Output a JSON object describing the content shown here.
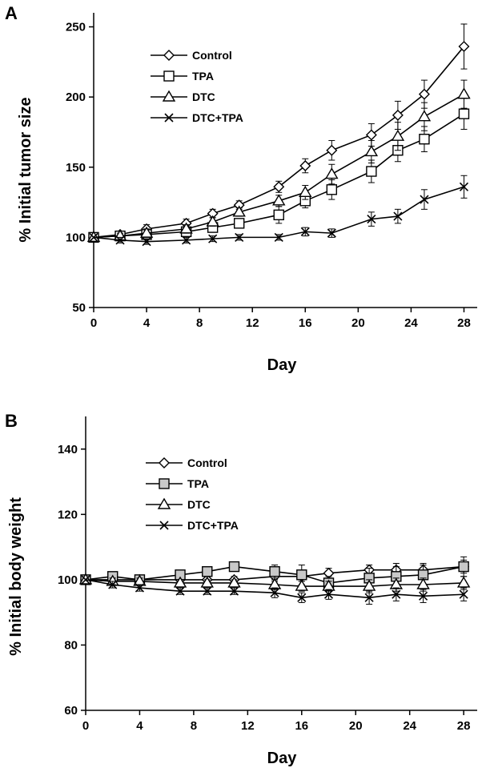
{
  "chart_data": [
    {
      "panel": "A",
      "type": "line",
      "xlabel": "Day",
      "ylabel": "% Initial tumor size",
      "xlim": [
        0,
        29
      ],
      "ylim": [
        50,
        260
      ],
      "xticks": [
        0,
        4,
        8,
        12,
        16,
        20,
        24,
        28
      ],
      "yticks": [
        50,
        100,
        150,
        200,
        250
      ],
      "legend_position": "top-left",
      "series": [
        {
          "name": "Control",
          "marker": "diamond",
          "fill": "#ffffff",
          "x": [
            0,
            2,
            4,
            7,
            9,
            11,
            14,
            16,
            18,
            21,
            23,
            25,
            28
          ],
          "y": [
            100,
            102,
            106,
            110,
            117,
            123,
            136,
            151,
            162,
            173,
            187,
            202,
            236
          ],
          "err": [
            0,
            2,
            3,
            3,
            3,
            3,
            4,
            5,
            7,
            8,
            10,
            10,
            16
          ]
        },
        {
          "name": "TPA",
          "marker": "square",
          "fill": "#ffffff",
          "x": [
            0,
            2,
            4,
            7,
            9,
            11,
            14,
            16,
            18,
            21,
            23,
            25,
            28
          ],
          "y": [
            100,
            101,
            102,
            104,
            107,
            110,
            116,
            126,
            134,
            147,
            162,
            170,
            188
          ],
          "err": [
            0,
            2,
            2,
            3,
            3,
            3,
            6,
            5,
            7,
            8,
            8,
            9,
            11
          ]
        },
        {
          "name": "DTC",
          "marker": "triangle",
          "fill": "#ffffff",
          "x": [
            0,
            2,
            4,
            7,
            9,
            11,
            14,
            16,
            18,
            21,
            23,
            25,
            28
          ],
          "y": [
            100,
            101,
            103,
            106,
            111,
            118,
            126,
            132,
            145,
            161,
            172,
            186,
            202
          ],
          "err": [
            0,
            2,
            3,
            3,
            3,
            3,
            4,
            5,
            7,
            8,
            10,
            10,
            10
          ]
        },
        {
          "name": "DTC+TPA",
          "marker": "x",
          "fill": "#ffffff",
          "x": [
            0,
            2,
            4,
            7,
            9,
            11,
            14,
            16,
            18,
            21,
            23,
            25,
            28
          ],
          "y": [
            100,
            98,
            97,
            98,
            99,
            100,
            100,
            104,
            103,
            113,
            115,
            127,
            136
          ],
          "err": [
            0,
            2,
            2,
            2,
            2,
            2,
            2,
            3,
            3,
            5,
            5,
            7,
            8
          ]
        }
      ]
    },
    {
      "panel": "B",
      "type": "line",
      "xlabel": "Day",
      "ylabel": "% Initial body weight",
      "xlim": [
        0,
        29
      ],
      "ylim": [
        60,
        150
      ],
      "xticks": [
        0,
        4,
        8,
        12,
        16,
        20,
        24,
        28
      ],
      "yticks": [
        60,
        80,
        100,
        120,
        140
      ],
      "legend_position": "top-left",
      "series": [
        {
          "name": "Control",
          "marker": "diamond",
          "fill": "#ffffff",
          "x": [
            0,
            2,
            4,
            7,
            9,
            11,
            14,
            16,
            18,
            21,
            23,
            25,
            28
          ],
          "y": [
            100,
            100,
            100,
            100,
            100,
            100,
            101,
            101,
            102,
            103,
            103,
            103,
            104
          ],
          "err": [
            0,
            1,
            1,
            1,
            1,
            1,
            1.5,
            1.5,
            1.5,
            1.5,
            2,
            2,
            2
          ]
        },
        {
          "name": "TPA",
          "marker": "square",
          "fill": "#c8c8c8",
          "x": [
            0,
            2,
            4,
            7,
            9,
            11,
            14,
            16,
            18,
            21,
            23,
            25,
            28
          ],
          "y": [
            100,
            101,
            100,
            101.5,
            102.5,
            104,
            102.5,
            101.5,
            99,
            100.5,
            101,
            101.5,
            104
          ],
          "err": [
            0,
            1,
            1,
            1,
            1,
            1,
            2,
            3,
            2,
            3,
            3,
            3,
            3
          ]
        },
        {
          "name": "DTC",
          "marker": "triangle",
          "fill": "#ffffff",
          "x": [
            0,
            2,
            4,
            7,
            9,
            11,
            14,
            16,
            18,
            21,
            23,
            25,
            28
          ],
          "y": [
            100,
            99.5,
            99.5,
            99,
            99,
            99,
            98.5,
            98,
            98,
            98,
            98.5,
            98.5,
            99
          ],
          "err": [
            0,
            1,
            1,
            1,
            1,
            1,
            1.5,
            1.5,
            1.5,
            2,
            2,
            2,
            2
          ]
        },
        {
          "name": "DTC+TPA",
          "marker": "x",
          "fill": "#ffffff",
          "x": [
            0,
            2,
            4,
            7,
            9,
            11,
            14,
            16,
            18,
            21,
            23,
            25,
            28
          ],
          "y": [
            100,
            98.5,
            97.5,
            96.5,
            96.5,
            96.5,
            96,
            94.5,
            95.5,
            94.5,
            95.5,
            95,
            95.5
          ],
          "err": [
            0,
            1,
            1,
            1,
            1,
            1,
            1.5,
            1.5,
            1.5,
            2,
            2,
            2,
            2
          ]
        }
      ]
    }
  ]
}
